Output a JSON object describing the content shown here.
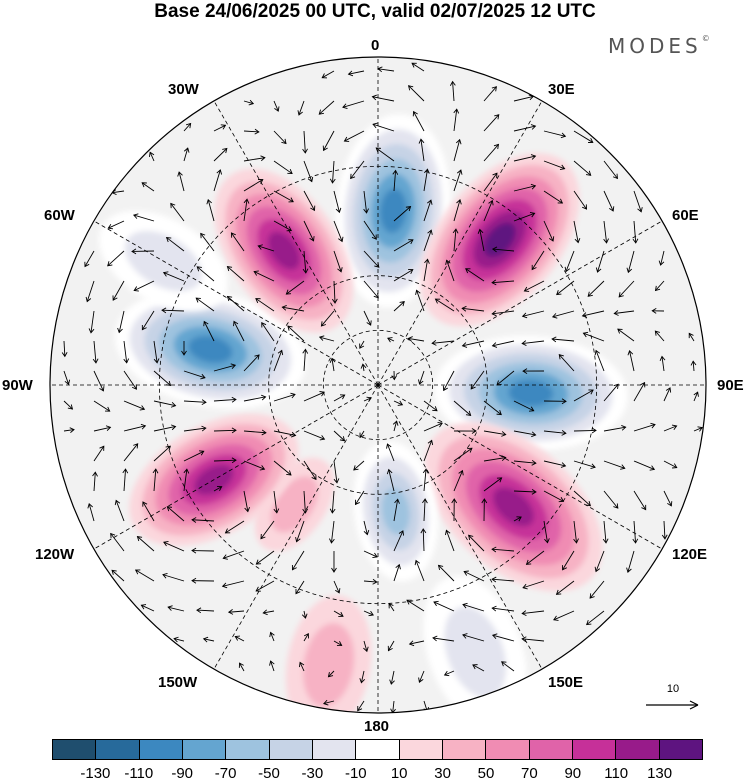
{
  "title": "Base 24/06/2025 00 UTC, valid 02/07/2025 12 UTC",
  "brand": "MODES",
  "brand_mark": "©",
  "longitude_labels": [
    "0",
    "30E",
    "60E",
    "90E",
    "120E",
    "150E",
    "180",
    "150W",
    "120W",
    "90W",
    "60W",
    "30W"
  ],
  "reference_vector_label": "10",
  "colorbar": {
    "colors": [
      "#1f4e6e",
      "#276a9b",
      "#3c88c0",
      "#64a5d0",
      "#9ec3df",
      "#c6d3e6",
      "#e3e4ef",
      "#ffffff",
      "#fbd7dd",
      "#f7b2c4",
      "#f08cb3",
      "#e063a9",
      "#c63099",
      "#981b8a",
      "#5e1480"
    ],
    "tick_labels": [
      "-130",
      "-110",
      "-90",
      "-70",
      "-50",
      "-30",
      "-10",
      "10",
      "30",
      "50",
      "70",
      "90",
      "110",
      "130"
    ]
  },
  "anomaly_cells": [
    {
      "lon": 5,
      "lat": 42,
      "value": -110,
      "size": 1.1
    },
    {
      "lon": 40,
      "lat": 38,
      "value": 125,
      "size": 1.15
    },
    {
      "lon": 93,
      "lat": 48,
      "value": -95,
      "size": 1.1
    },
    {
      "lon": 132,
      "lat": 40,
      "value": 105,
      "size": 1.2
    },
    {
      "lon": 172,
      "lat": 55,
      "value": -70,
      "size": 0.8
    },
    {
      "lon": 215,
      "lat": 50,
      "value": 25,
      "size": 0.6
    },
    {
      "lon": 240,
      "lat": 38,
      "value": 95,
      "size": 1.05
    },
    {
      "lon": 282,
      "lat": 43,
      "value": -95,
      "size": 1.1
    },
    {
      "lon": 325,
      "lat": 45,
      "value": 95,
      "size": 1.05
    },
    {
      "lon": 300,
      "lat": 22,
      "value": -30,
      "size": 0.8
    },
    {
      "lon": 160,
      "lat": 12,
      "value": -25,
      "size": 0.9
    },
    {
      "lon": 190,
      "lat": 12,
      "value": 20,
      "size": 0.8
    }
  ]
}
